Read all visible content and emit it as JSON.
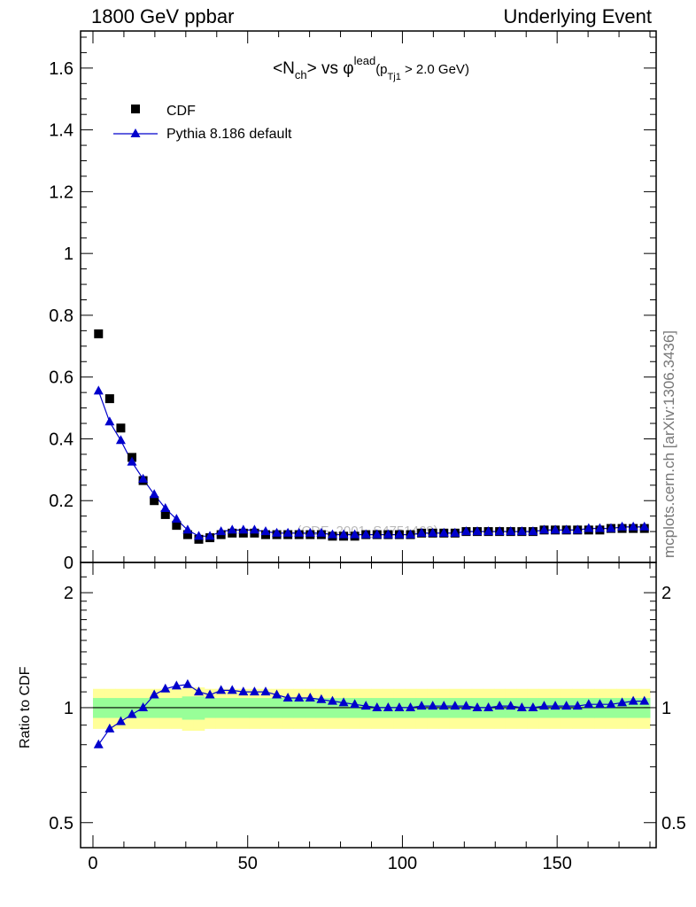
{
  "header": {
    "left": "1800 GeV ppbar",
    "right": "Underlying Event",
    "side_label": "mcplots.cern.ch [arXiv:1306.3436]"
  },
  "watermark": "(CDF_2001_S4751469)",
  "colors": {
    "data": "#000000",
    "mc": "#0000cc",
    "band_inner": "#98ff98",
    "band_outer": "#ffff99"
  },
  "chart_data": [
    {
      "type": "scatter",
      "title_parts": {
        "pre": "<N",
        "sub1": "ch",
        "mid": "> vs φ",
        "sup": "lead",
        "paren": "(p",
        "sub2": "Tj1",
        "post": " > 2.0 GeV)"
      },
      "ylim": [
        0,
        1.72
      ],
      "xlim": [
        -4,
        182
      ],
      "y_ticks": [
        {
          "v": 0,
          "t": "0"
        },
        {
          "v": 0.2,
          "t": "0.2"
        },
        {
          "v": 0.4,
          "t": "0.4"
        },
        {
          "v": 0.6,
          "t": "0.6"
        },
        {
          "v": 0.8,
          "t": "0.8"
        },
        {
          "v": 1.0,
          "t": "1"
        },
        {
          "v": 1.2,
          "t": "1.2"
        },
        {
          "v": 1.4,
          "t": "1.4"
        },
        {
          "v": 1.6,
          "t": "1.6"
        }
      ],
      "x": [
        1.8,
        5.4,
        9.0,
        12.6,
        16.2,
        19.8,
        23.4,
        27.0,
        30.6,
        34.2,
        37.8,
        41.4,
        45.0,
        48.6,
        52.2,
        55.8,
        59.4,
        63.0,
        66.6,
        70.2,
        73.8,
        77.4,
        81.0,
        84.6,
        88.2,
        91.8,
        95.4,
        99.0,
        102.6,
        106.2,
        109.8,
        113.4,
        117.0,
        120.6,
        124.2,
        127.8,
        131.4,
        135.0,
        138.6,
        142.2,
        145.8,
        149.4,
        153.0,
        156.6,
        160.2,
        163.8,
        167.4,
        171.0,
        174.6,
        178.2
      ],
      "series": [
        {
          "name": "CDF",
          "marker": "square",
          "values": [
            0.74,
            0.53,
            0.435,
            0.34,
            0.265,
            0.2,
            0.155,
            0.12,
            0.09,
            0.075,
            0.08,
            0.09,
            0.095,
            0.095,
            0.095,
            0.09,
            0.09,
            0.09,
            0.09,
            0.09,
            0.09,
            0.085,
            0.085,
            0.085,
            0.09,
            0.09,
            0.09,
            0.09,
            0.09,
            0.095,
            0.095,
            0.095,
            0.095,
            0.1,
            0.1,
            0.1,
            0.1,
            0.1,
            0.1,
            0.1,
            0.105,
            0.105,
            0.105,
            0.105,
            0.105,
            0.105,
            0.11,
            0.11,
            0.11,
            0.11
          ]
        },
        {
          "name": "Pythia 8.186 default",
          "marker": "triangle",
          "values": [
            0.555,
            0.455,
            0.395,
            0.325,
            0.27,
            0.22,
            0.175,
            0.14,
            0.105,
            0.085,
            0.085,
            0.1,
            0.105,
            0.105,
            0.105,
            0.1,
            0.095,
            0.095,
            0.095,
            0.095,
            0.095,
            0.09,
            0.09,
            0.09,
            0.09,
            0.09,
            0.09,
            0.09,
            0.09,
            0.095,
            0.095,
            0.095,
            0.095,
            0.1,
            0.1,
            0.1,
            0.1,
            0.1,
            0.1,
            0.1,
            0.105,
            0.105,
            0.105,
            0.105,
            0.11,
            0.11,
            0.11,
            0.115,
            0.115,
            0.115
          ]
        }
      ]
    },
    {
      "type": "scatter",
      "ylabel": "Ratio to CDF",
      "ylim": [
        0.43,
        2.4
      ],
      "log_y": true,
      "y_ticks": [
        {
          "v": 0.5,
          "t": "0.5"
        },
        {
          "v": 1,
          "t": "1"
        },
        {
          "v": 2,
          "t": "2"
        }
      ],
      "x_ticks": [
        {
          "v": 0,
          "t": "0"
        },
        {
          "v": 50,
          "t": "50"
        },
        {
          "v": 100,
          "t": "100"
        },
        {
          "v": 150,
          "t": "150"
        }
      ],
      "reference": 1,
      "band_inner_halfwidth": [
        0.06,
        0.06,
        0.06,
        0.06,
        0.06,
        0.06,
        0.06,
        0.06,
        0.07,
        0.07,
        0.06,
        0.06,
        0.06,
        0.06,
        0.06,
        0.06,
        0.06,
        0.06,
        0.06,
        0.06,
        0.06,
        0.06,
        0.06,
        0.06,
        0.06,
        0.06,
        0.06,
        0.06,
        0.06,
        0.06,
        0.06,
        0.06,
        0.06,
        0.06,
        0.06,
        0.06,
        0.06,
        0.06,
        0.06,
        0.06,
        0.06,
        0.06,
        0.06,
        0.06,
        0.06,
        0.06,
        0.06,
        0.06,
        0.06,
        0.06
      ],
      "band_outer_halfwidth": [
        0.12,
        0.12,
        0.12,
        0.12,
        0.12,
        0.12,
        0.12,
        0.12,
        0.13,
        0.13,
        0.12,
        0.12,
        0.12,
        0.12,
        0.12,
        0.12,
        0.12,
        0.12,
        0.12,
        0.12,
        0.12,
        0.12,
        0.12,
        0.12,
        0.12,
        0.12,
        0.12,
        0.12,
        0.12,
        0.12,
        0.12,
        0.12,
        0.12,
        0.12,
        0.12,
        0.12,
        0.12,
        0.12,
        0.12,
        0.12,
        0.12,
        0.12,
        0.12,
        0.12,
        0.12,
        0.12,
        0.12,
        0.12,
        0.12,
        0.12
      ],
      "series": [
        {
          "name": "Pythia 8.186 default",
          "values": [
            0.8,
            0.88,
            0.92,
            0.96,
            1.0,
            1.08,
            1.12,
            1.14,
            1.15,
            1.1,
            1.08,
            1.11,
            1.11,
            1.1,
            1.1,
            1.1,
            1.08,
            1.06,
            1.06,
            1.06,
            1.05,
            1.04,
            1.03,
            1.02,
            1.01,
            1.0,
            1.0,
            1.0,
            1.0,
            1.01,
            1.01,
            1.01,
            1.01,
            1.01,
            1.0,
            1.0,
            1.01,
            1.01,
            1.0,
            1.0,
            1.01,
            1.01,
            1.01,
            1.01,
            1.02,
            1.02,
            1.02,
            1.03,
            1.04,
            1.04
          ]
        }
      ]
    }
  ]
}
